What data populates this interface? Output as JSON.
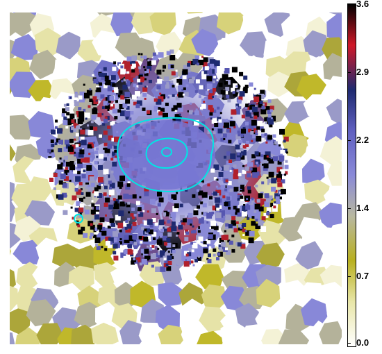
{
  "colorbar": {
    "ticks": [
      "3.6",
      "2.9",
      "2.2",
      "1.4",
      "0.7",
      "0.0"
    ],
    "range": [
      0.0,
      3.6
    ],
    "stops": [
      "#ffffff",
      "#e8e6a8",
      "#b8b020",
      "#b8b8a0",
      "#8a8ad8",
      "#6060c0",
      "#1e2a70",
      "#d01828",
      "#000000"
    ]
  },
  "contours": {
    "color": "#00e5e5",
    "count": 5
  },
  "palette": [
    "#ffffff",
    "#f4f2d6",
    "#e6e3a8",
    "#d7d27a",
    "#c0b82a",
    "#aca63a",
    "#b4b29a",
    "#9a9ac8",
    "#8888d8",
    "#7070c8",
    "#5656b0",
    "#6a4a8a",
    "#1e2a70",
    "#b0202c",
    "#000000"
  ]
}
